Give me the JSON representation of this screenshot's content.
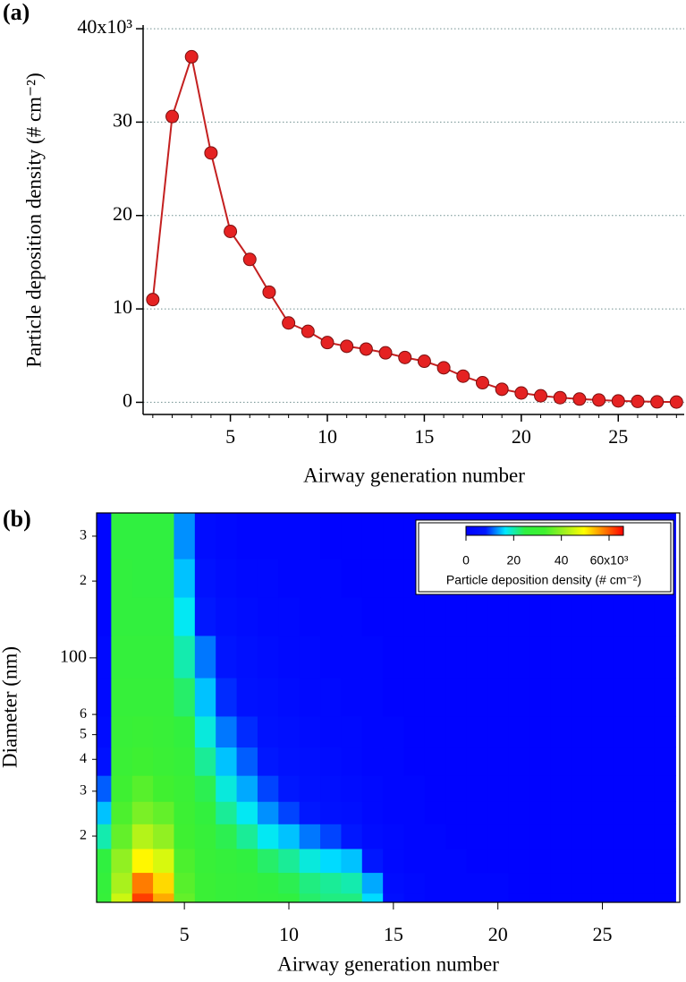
{
  "chart_data": [
    {
      "type": "line",
      "label": "(a)",
      "x_label": "Airway generation number",
      "y_label": "Particle deposition density (# cm⁻²)",
      "x": [
        1,
        2,
        3,
        4,
        5,
        6,
        7,
        8,
        9,
        10,
        11,
        12,
        13,
        14,
        15,
        16,
        17,
        18,
        19,
        20,
        21,
        22,
        23,
        24,
        25,
        26,
        27,
        28
      ],
      "series": [
        {
          "color": "#e52222",
          "values": [
            11,
            30.6,
            37,
            26.7,
            18.3,
            15.3,
            11.8,
            8.5,
            7.6,
            6.4,
            6.0,
            5.7,
            5.3,
            4.8,
            4.4,
            3.7,
            2.8,
            2.1,
            1.4,
            1.0,
            0.7,
            0.5,
            0.35,
            0.25,
            0.15,
            0.1,
            0.05,
            0.03
          ]
        }
      ],
      "xlim": [
        0.5,
        28.4
      ],
      "xticks": [
        5,
        10,
        15,
        20,
        25
      ],
      "ylim": [
        -1.3,
        40.2
      ],
      "yticks": [
        0,
        10,
        20,
        30,
        {
          "value": 40,
          "label": "40x10³"
        }
      ],
      "grid": true
    },
    {
      "type": "heatmap",
      "label": "(b)",
      "x_label": "Airway generation number",
      "y_label": "Diameter (nm)",
      "x": [
        1,
        2,
        3,
        4,
        5,
        6,
        7,
        8,
        9,
        10,
        11,
        12,
        13,
        14,
        15,
        16,
        17,
        18,
        19,
        20,
        21,
        22,
        23,
        24,
        25,
        26,
        27,
        28
      ],
      "y": [
        11,
        13,
        16,
        20,
        25,
        30,
        40,
        50,
        70,
        100,
        150,
        200,
        300
      ],
      "values": [
        [
          28,
          45,
          62,
          55,
          36,
          30,
          28,
          27,
          26,
          25,
          23,
          22,
          22,
          16,
          5,
          3,
          2,
          2,
          2,
          2,
          1,
          1,
          1,
          1,
          1,
          1,
          1,
          1
        ],
        [
          27,
          42,
          58,
          52,
          35,
          30,
          28,
          27,
          25,
          24,
          22,
          21,
          20,
          14,
          4,
          3,
          2,
          2,
          2,
          2,
          1,
          1,
          1,
          1,
          1,
          1,
          1,
          1
        ],
        [
          25,
          40,
          50,
          46,
          34,
          29,
          27,
          25,
          23,
          21,
          18,
          16,
          15,
          8,
          3,
          2,
          2,
          2,
          1,
          1,
          1,
          1,
          1,
          1,
          1,
          1,
          1,
          1
        ],
        [
          20,
          36,
          43,
          40,
          32,
          28,
          24,
          21,
          17,
          15,
          12,
          10,
          8,
          4,
          3,
          2,
          2,
          1,
          1,
          1,
          1,
          1,
          1,
          1,
          1,
          1,
          1,
          1
        ],
        [
          15,
          34,
          38,
          36,
          31,
          26,
          21,
          17,
          13,
          10,
          8,
          6,
          5,
          3,
          2,
          2,
          1,
          1,
          1,
          1,
          1,
          1,
          1,
          1,
          1,
          1,
          1,
          1
        ],
        [
          11,
          32,
          35,
          33,
          30,
          24,
          18,
          14,
          10,
          8,
          6,
          5,
          4,
          3,
          2,
          2,
          1,
          1,
          1,
          1,
          1,
          1,
          1,
          1,
          1,
          1,
          1,
          1
        ],
        [
          6,
          30,
          32,
          30,
          28,
          21,
          15,
          11,
          8,
          6,
          5,
          4,
          3,
          2,
          2,
          1,
          1,
          1,
          1,
          1,
          1,
          1,
          1,
          1,
          1,
          1,
          1,
          1
        ],
        [
          4,
          29,
          30,
          29,
          26,
          18,
          12,
          9,
          6,
          5,
          4,
          3,
          3,
          2,
          2,
          1,
          1,
          1,
          1,
          1,
          1,
          1,
          1,
          1,
          1,
          1,
          1,
          1
        ],
        [
          3,
          28,
          28,
          28,
          23,
          15,
          9,
          6,
          5,
          4,
          3,
          3,
          2,
          2,
          1,
          1,
          1,
          1,
          1,
          1,
          1,
          1,
          1,
          1,
          1,
          1,
          1,
          1
        ],
        [
          3,
          27,
          27,
          27,
          20,
          12,
          7,
          5,
          4,
          3,
          3,
          2,
          2,
          2,
          1,
          1,
          1,
          1,
          1,
          1,
          1,
          1,
          1,
          1,
          1,
          1,
          1,
          1
        ],
        [
          2,
          26,
          26,
          26,
          17,
          8,
          5,
          4,
          3,
          3,
          2,
          2,
          2,
          1,
          1,
          1,
          1,
          1,
          1,
          1,
          1,
          1,
          1,
          1,
          1,
          1,
          1,
          1
        ],
        [
          2,
          26,
          25,
          25,
          15,
          6,
          4,
          3,
          3,
          2,
          2,
          2,
          1,
          1,
          1,
          1,
          1,
          1,
          1,
          1,
          1,
          1,
          1,
          1,
          1,
          1,
          1,
          1
        ],
        [
          2,
          25,
          25,
          25,
          13,
          4,
          3,
          2,
          2,
          2,
          2,
          1,
          1,
          1,
          1,
          1,
          1,
          1,
          1,
          1,
          1,
          1,
          1,
          1,
          1,
          1,
          1,
          1
        ]
      ],
      "xlim": [
        0.8,
        28.7
      ],
      "xticks": [
        5,
        10,
        15,
        20,
        25
      ],
      "ylim": [
        11,
        370
      ],
      "ylog": true,
      "yticks": [
        {
          "value": 20,
          "label": "2"
        },
        {
          "value": 30,
          "label": "3"
        },
        {
          "value": 40,
          "label": "4"
        },
        {
          "value": 50,
          "label": "5"
        },
        {
          "value": 60,
          "label": "6"
        },
        100,
        {
          "value": 200,
          "label": "2"
        },
        {
          "value": 300,
          "label": "3"
        }
      ],
      "colors": [
        "#0000ff",
        "#0018ff",
        "#00e8ff",
        "#30f040",
        "#40f030",
        "#a0f020",
        "#ffff00",
        "#ff8000",
        "#ff0000"
      ],
      "colorbar": {
        "title": "Particle deposition density (# cm⁻²)",
        "zlim": [
          0,
          66
        ],
        "ticks": [
          0,
          20,
          40,
          {
            "value": 60,
            "label": "60x10³"
          }
        ]
      }
    }
  ]
}
